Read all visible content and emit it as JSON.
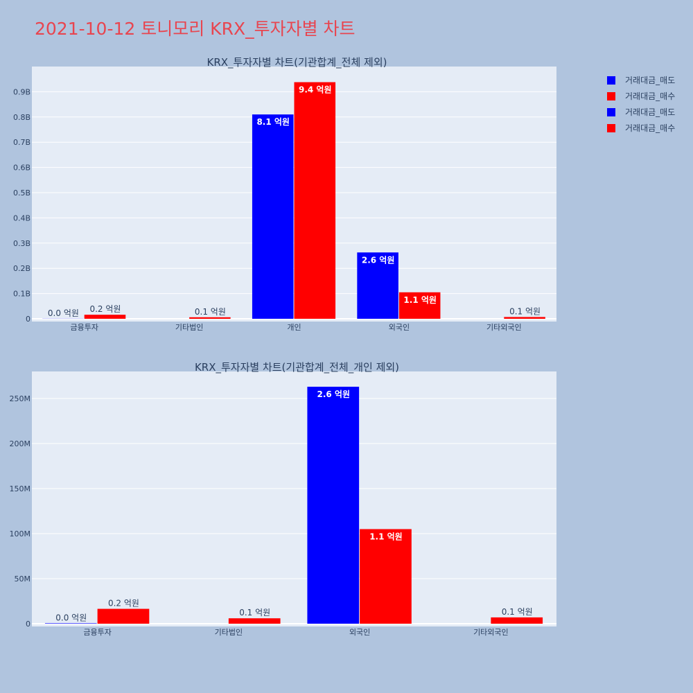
{
  "page_title": "2021-10-12 토니모리 KRX_투자자별 차트",
  "legend": [
    {
      "label": "거래대금_매도",
      "color": "#0000ff"
    },
    {
      "label": "거래대금_매수",
      "color": "#ff0000"
    },
    {
      "label": "거래대금_매도",
      "color": "#0000ff"
    },
    {
      "label": "거래대금_매수",
      "color": "#ff0000"
    }
  ],
  "colors": {
    "sell": "#0000ff",
    "buy": "#ff0000",
    "plot_bg": "#e5ecf6",
    "grid": "#ffffff",
    "axis_text": "#2a3f5f"
  },
  "chart_data": [
    {
      "type": "bar",
      "title": "KRX_투자자별 차트(기관합계_전체 제외)",
      "categories": [
        "금융투자",
        "기타법인",
        "개인",
        "외국인",
        "기타외국인"
      ],
      "series": [
        {
          "name": "거래대금_매도",
          "values": [
            500000,
            0,
            810000000,
            263000000,
            0
          ],
          "labels": [
            "0.0 억원",
            "",
            "8.1 억원",
            "2.6 억원",
            ""
          ]
        },
        {
          "name": "거래대금_매수",
          "values": [
            16000000,
            6000000,
            938000000,
            105000000,
            7000000
          ],
          "labels": [
            "0.2 억원",
            "0.1 억원",
            "9.4 억원",
            "1.1 억원",
            "0.1 억원"
          ]
        }
      ],
      "ylim": [
        0,
        1000000000
      ],
      "yticks": [
        0,
        100000000,
        200000000,
        300000000,
        400000000,
        500000000,
        600000000,
        700000000,
        800000000,
        900000000
      ],
      "ytick_labels": [
        "0",
        "0.1B",
        "0.2B",
        "0.3B",
        "0.4B",
        "0.5B",
        "0.6B",
        "0.7B",
        "0.8B",
        "0.9B"
      ],
      "grid": true
    },
    {
      "type": "bar",
      "title": "KRX_투자자별 차트(기관합계_전체_개인 제외)",
      "categories": [
        "금융투자",
        "기타법인",
        "외국인",
        "기타외국인"
      ],
      "series": [
        {
          "name": "거래대금_매도",
          "values": [
            500000,
            0,
            263000000,
            0
          ],
          "labels": [
            "0.0 억원",
            "",
            "2.6 억원",
            ""
          ]
        },
        {
          "name": "거래대금_매수",
          "values": [
            16500000,
            6000000,
            105000000,
            7000000
          ],
          "labels": [
            "0.2 억원",
            "0.1 억원",
            "1.1 억원",
            "0.1 억원"
          ]
        }
      ],
      "ylim": [
        0,
        280000000
      ],
      "yticks": [
        0,
        50000000,
        100000000,
        150000000,
        200000000,
        250000000
      ],
      "ytick_labels": [
        "0",
        "50M",
        "100M",
        "150M",
        "200M",
        "250M"
      ],
      "grid": true
    }
  ]
}
